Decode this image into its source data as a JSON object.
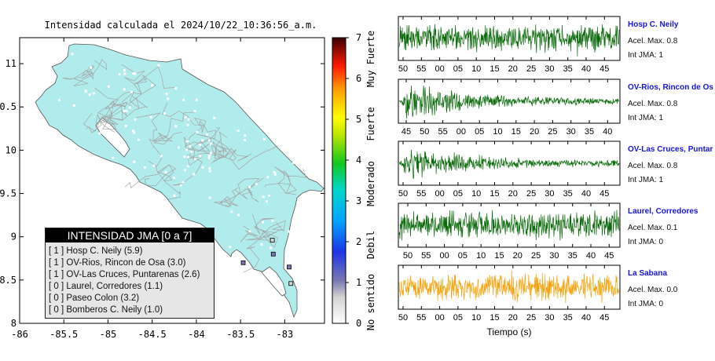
{
  "map": {
    "title": "Intensidad calculada el 2024/10/22_10:36:56_a.m.",
    "x_ticks": [
      "-86",
      "-85.5",
      "-85",
      "-84.5",
      "-84",
      "-83.5",
      "-83"
    ],
    "y_ticks": [
      "11",
      "10.5",
      "10",
      "9.5",
      "9",
      "8.5",
      "8"
    ],
    "land_color": "#b0ecec",
    "legend": {
      "title": "INTENSIDAD JMA [0 a 7]",
      "items": [
        {
          "text": "[ 1 ]  Hosp C. Neily (5.9)"
        },
        {
          "text": "[ 1 ]  OV-Rios, Rincon de Osa (3.0)"
        },
        {
          "text": "[ 1 ]  OV-Las Cruces, Puntarenas (2.6)"
        },
        {
          "text": "[ 0 ]  Laurel, Corredores (1.1)"
        },
        {
          "text": "[ 0 ]  Paseo Colon (3.2)"
        },
        {
          "text": "[ 0 ]  Bomberos C. Neily (1.0)"
        }
      ]
    }
  },
  "colorbar": {
    "ticks": [
      "0",
      "1",
      "2",
      "3",
      "4",
      "5",
      "6",
      "7"
    ],
    "labels": [
      "No sentido",
      "Debil",
      "Moderado",
      "Fuerte",
      "Muy Fuerte"
    ]
  },
  "chart_data": [
    {
      "type": "scatter",
      "title": "Intensidad calculada el 2024/10/22_10:36:56_a.m.",
      "xlim": [
        -86,
        -82.55
      ],
      "ylim": [
        8,
        11.3
      ],
      "stations": [
        {
          "name": "Hosp C. Neily",
          "lon": -82.95,
          "lat": 8.65,
          "jma": 1
        },
        {
          "name": "OV-Rios, Rincon de Osa",
          "lon": -83.47,
          "lat": 8.7,
          "jma": 1
        },
        {
          "name": "OV-Las Cruces, Puntarenas",
          "lon": -83.13,
          "lat": 8.8,
          "jma": 1
        },
        {
          "name": "Laurel, Corredores",
          "lon": -82.93,
          "lat": 8.46,
          "jma": 0
        },
        {
          "name": "Bomberos C. Neily",
          "lon": -83.14,
          "lat": 8.96,
          "jma": 0
        }
      ]
    },
    {
      "type": "line",
      "xlabel": "Tiempo (s)",
      "traces": [
        {
          "station": "Hosp C. Neily",
          "accel_label": "Acel. Max. 0.8",
          "jma_label": "Int JMA: 1",
          "color": "#0b6b0b",
          "shape": "steady",
          "ticks": [
            "50",
            "55",
            "00",
            "05",
            "10",
            "15",
            "20",
            "25",
            "30",
            "35",
            "40",
            "45"
          ]
        },
        {
          "station": "OV-Rios, Rincon de Os",
          "accel_label": "Acel. Max. 0.8",
          "jma_label": "Int JMA: 1",
          "color": "#0b6b0b",
          "shape": "decay",
          "ticks": [
            "45",
            "50",
            "55",
            "00",
            "05",
            "10",
            "15",
            "20",
            "25",
            "30",
            "35",
            "40"
          ]
        },
        {
          "station": "OV-Las Cruces, Puntar",
          "accel_label": "Acel. Max. 0.8",
          "jma_label": "Int JMA: 1",
          "color": "#0b6b0b",
          "shape": "decay",
          "ticks": [
            "50",
            "55",
            "00",
            "05",
            "10",
            "15",
            "20",
            "25",
            "30",
            "35",
            "40",
            "45"
          ]
        },
        {
          "station": "Laurel, Corredores",
          "accel_label": "Acel. Max. 0.1",
          "jma_label": "Int JMA: 0",
          "color": "#0b6b0b",
          "shape": "steady",
          "ticks": [
            "50",
            "55",
            "00",
            "05",
            "10",
            "15",
            "20",
            "25",
            "30",
            "35",
            "40",
            "45"
          ]
        },
        {
          "station": "La Sabana",
          "accel_label": "Acel. Max. 0.0",
          "jma_label": "Int JMA: 0",
          "color": "#f5a20a",
          "shape": "steady",
          "ticks": [
            "50",
            "55",
            "00",
            "05",
            "10",
            "15",
            "20",
            "25",
            "30",
            "35",
            "40",
            "45"
          ]
        }
      ]
    }
  ]
}
